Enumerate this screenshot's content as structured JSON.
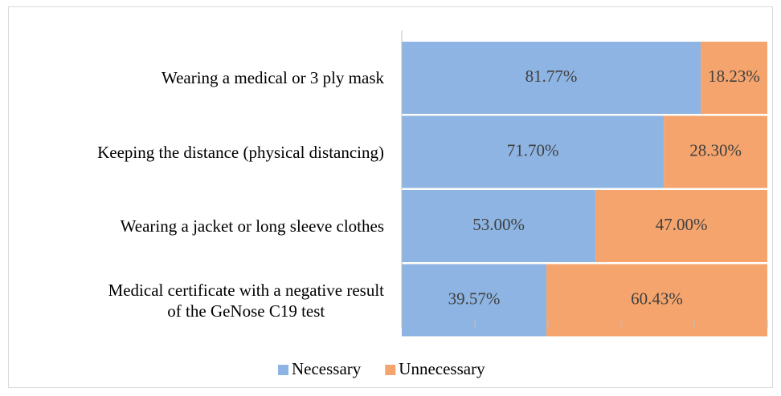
{
  "chart_data": {
    "type": "stacked_barh",
    "categories": [
      "Wearing a medical or 3 ply mask",
      "Keeping the distance (physical distancing)",
      "Wearing a jacket or long sleeve clothes",
      "Medical certificate with a negative result\nof the GeNose C19 test"
    ],
    "series": [
      {
        "name": "Necessary",
        "color": "#8db4e2",
        "values": [
          81.77,
          71.7,
          53.0,
          39.57
        ],
        "value_labels": [
          "81.77%",
          "71.70%",
          "53.00%",
          "39.57%"
        ]
      },
      {
        "name": "Unnecessary",
        "color": "#f4a46c",
        "values": [
          18.23,
          28.3,
          47.0,
          60.43
        ],
        "value_labels": [
          "18.23%",
          "28.30%",
          "47.00%",
          "60.43%"
        ]
      }
    ],
    "xlim": [
      0,
      100
    ],
    "xticks": [
      0,
      20,
      40,
      60,
      80,
      100
    ],
    "legend": "bottom"
  }
}
